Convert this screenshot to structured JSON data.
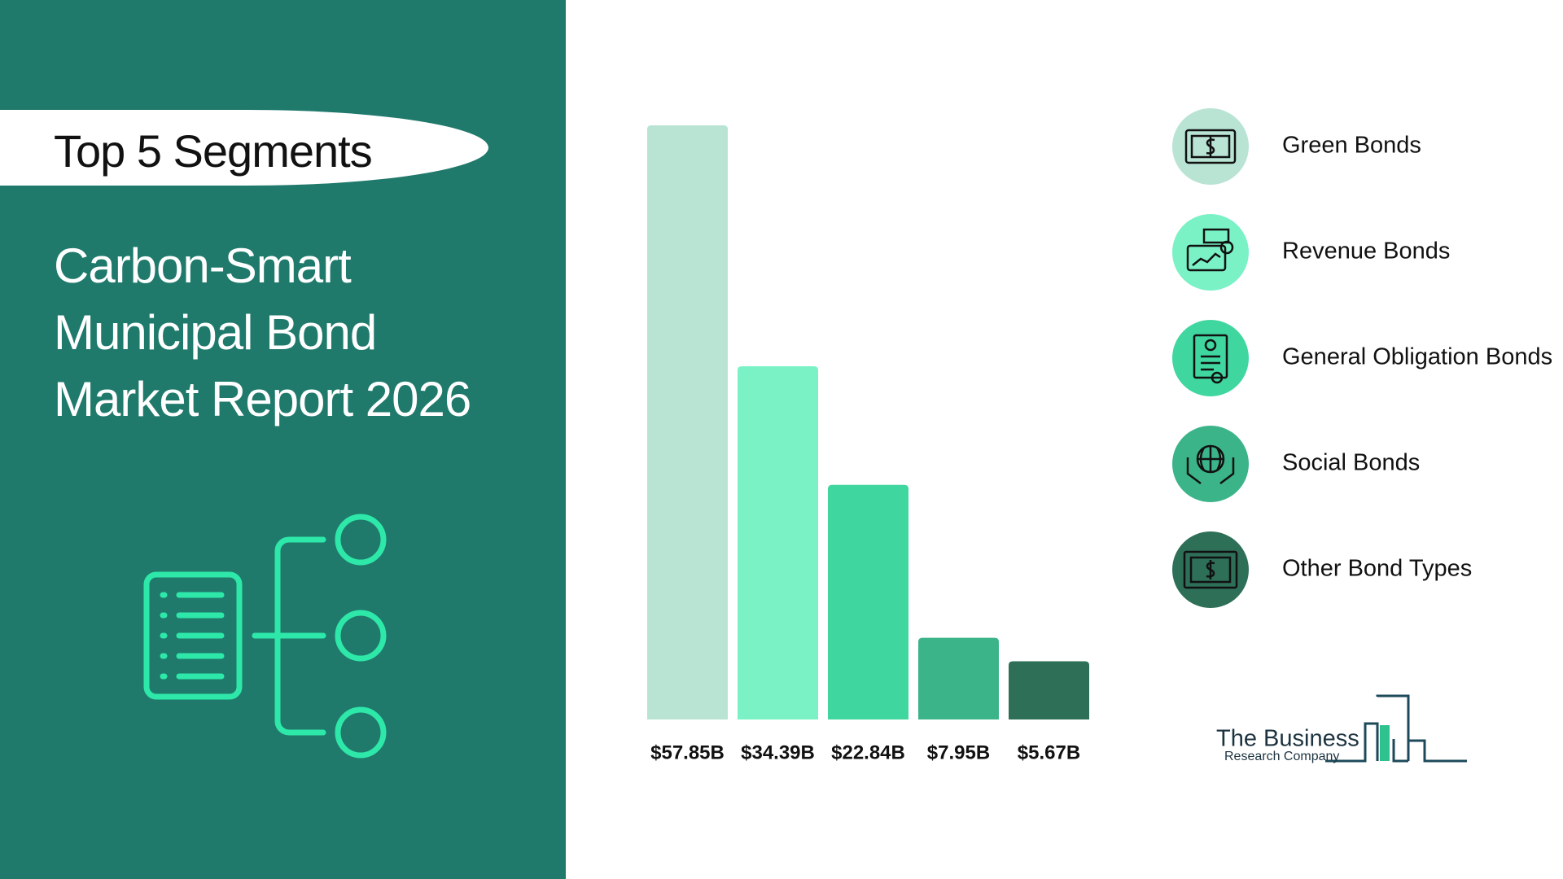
{
  "header": {
    "title": "Top 5 Segments",
    "subtitle": "Carbon-Smart Municipal Bond Market Report 2026"
  },
  "chart_data": {
    "type": "bar",
    "categories": [
      "Green Bonds",
      "Revenue Bonds",
      "General Obligation Bonds",
      "Social Bonds",
      "Other Bond Types"
    ],
    "values": [
      57.85,
      34.39,
      22.84,
      7.95,
      5.67
    ],
    "value_labels": [
      "$57.85B",
      "$34.39B",
      "$22.84B",
      "$7.95B",
      "$5.67B"
    ],
    "colors": [
      "#b9e4d4",
      "#7af2c6",
      "#40d6a0",
      "#3cb489",
      "#2e6f58"
    ]
  },
  "logo": {
    "line1": "The Business",
    "line2": "Research Company"
  }
}
